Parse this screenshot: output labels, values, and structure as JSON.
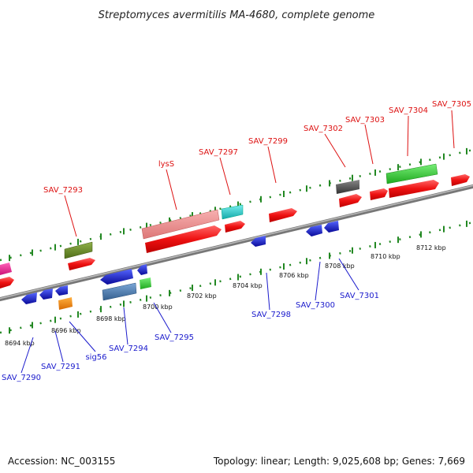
{
  "title": "Streptomyces avermitilis MA-4680, complete genome",
  "accession": "Accession: NC_003155",
  "summary": "Topology: linear; Length: 9,025,608 bp; Genes: 7,669",
  "scale_labels": [
    "8694 kbp",
    "8696 kbp",
    "8698 kbp",
    "8700 kbp",
    "8702 kbp",
    "8704 kbp",
    "8706 kbp",
    "8708 kbp",
    "8710 kbp",
    "8712 kbp"
  ],
  "forward_genes": [
    "SAV_7293",
    "lysS",
    "SAV_7297",
    "SAV_7299",
    "SAV_7302",
    "SAV_7303",
    "SAV_7304",
    "SAV_7305"
  ],
  "reverse_genes": [
    "SAV_7290",
    "SAV_7291",
    "sig56",
    "SAV_7294",
    "SAV_7295",
    "SAV_7298",
    "SAV_7300",
    "SAV_7301"
  ],
  "colors": {
    "forward_label": "#dd1111",
    "reverse_label": "#1a1acc",
    "backbone": "#888888",
    "red": "#ee1111",
    "pink": "#ee8888",
    "blue": "#1a1acc",
    "steel": "#4a7ab0",
    "olive": "#6b8e23",
    "green": "#33cc33",
    "cyan": "#22cccc",
    "gray": "#555555",
    "orange": "#ff8c00",
    "magenta": "#ee2288",
    "tick": "#228822"
  }
}
